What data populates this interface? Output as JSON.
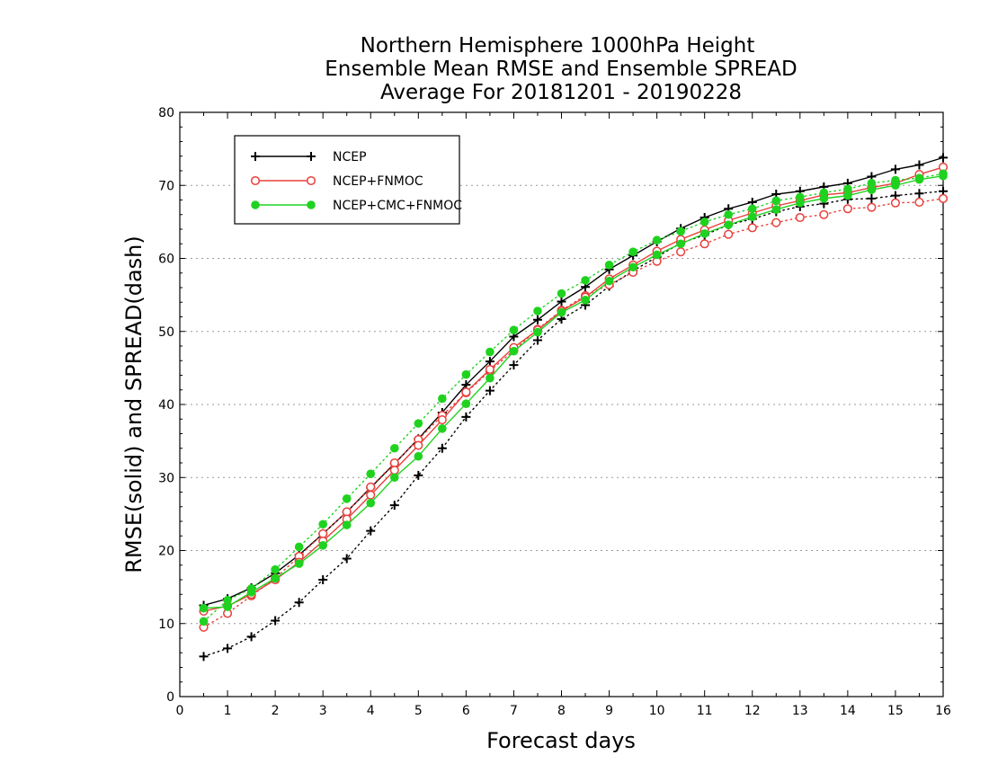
{
  "colors": {
    "ncep": "#000000",
    "ncep_fnmoc": "#e8403c",
    "ncep_cmc_fnmoc": "#1fd21f",
    "grid": "#9a9a9a"
  },
  "chart_data": {
    "type": "line",
    "title": [
      "Northern Hemisphere 1000hPa Height",
      "Ensemble Mean RMSE and Ensemble SPREAD",
      "Average For 20181201 - 20190228"
    ],
    "xlabel": "Forecast days",
    "ylabel": "RMSE(solid) and SPREAD(dash)",
    "xlim": [
      0,
      16
    ],
    "ylim": [
      0,
      80
    ],
    "xticks": [
      0,
      1,
      2,
      3,
      4,
      5,
      6,
      7,
      8,
      9,
      10,
      11,
      12,
      13,
      14,
      15,
      16
    ],
    "yticks": [
      0,
      10,
      20,
      30,
      40,
      50,
      60,
      70,
      80
    ],
    "grid": "horizontal dotted",
    "legend_position": "top-left",
    "x": [
      0.5,
      1,
      1.5,
      2,
      2.5,
      3,
      3.5,
      4,
      4.5,
      5,
      5.5,
      6,
      6.5,
      7,
      7.5,
      8,
      8.5,
      9,
      9.5,
      10,
      10.5,
      11,
      11.5,
      12,
      12.5,
      13,
      13.5,
      14,
      14.5,
      15,
      15.5,
      16
    ],
    "series": [
      {
        "name": "NCEP",
        "color_key": "ncep",
        "marker": "plus",
        "rmse": [
          12.5,
          13.4,
          14.9,
          16.9,
          19.4,
          22.3,
          25.3,
          28.6,
          31.9,
          35.3,
          38.9,
          42.7,
          45.9,
          49.3,
          51.6,
          54.1,
          56.1,
          58.5,
          60.4,
          62.3,
          64.1,
          65.6,
          66.8,
          67.7,
          68.8,
          69.2,
          69.8,
          70.3,
          71.2,
          72.2,
          72.8,
          73.8
        ],
        "spread": [
          5.5,
          6.6,
          8.2,
          10.4,
          12.9,
          16.0,
          18.9,
          22.7,
          26.2,
          30.3,
          34.0,
          38.3,
          41.9,
          45.4,
          48.8,
          51.7,
          53.6,
          56.2,
          58.3,
          60.2,
          62.1,
          63.2,
          64.6,
          65.4,
          66.4,
          67.1,
          67.5,
          68.1,
          68.2,
          68.6,
          68.9,
          69.2
        ]
      },
      {
        "name": "NCEP+FNMOC",
        "color_key": "ncep_fnmoc",
        "marker": "open-circle",
        "rmse": [
          11.7,
          12.4,
          14.0,
          16.0,
          18.4,
          21.3,
          24.3,
          27.6,
          31.0,
          34.4,
          37.9,
          41.7,
          44.8,
          47.8,
          50.2,
          52.8,
          54.7,
          57.2,
          59.1,
          61.0,
          62.6,
          63.9,
          65.2,
          66.2,
          67.2,
          67.9,
          68.7,
          69.0,
          69.7,
          70.3,
          71.5,
          72.5
        ],
        "spread": [
          9.5,
          11.4,
          13.8,
          16.2,
          19.2,
          22.3,
          25.3,
          28.7,
          32.0,
          35.2,
          38.5,
          41.6,
          44.6,
          47.4,
          50.3,
          52.9,
          54.9,
          56.4,
          58.1,
          59.6,
          60.9,
          62.0,
          63.3,
          64.2,
          64.9,
          65.6,
          66.0,
          66.8,
          67.0,
          67.6,
          67.7,
          68.2
        ]
      },
      {
        "name": "NCEP+CMC+FNMOC",
        "color_key": "ncep_cmc_fnmoc",
        "marker": "filled-circle",
        "rmse": [
          12.1,
          12.3,
          14.3,
          16.2,
          18.2,
          20.7,
          23.5,
          26.5,
          30.0,
          32.9,
          36.7,
          40.1,
          43.6,
          47.3,
          49.9,
          52.6,
          54.3,
          56.9,
          58.8,
          60.5,
          62.0,
          63.4,
          64.6,
          65.7,
          66.7,
          67.6,
          68.2,
          68.6,
          69.4,
          70.0,
          70.8,
          71.3
        ],
        "spread": [
          10.3,
          13.2,
          14.8,
          17.4,
          20.5,
          23.6,
          27.1,
          30.5,
          34.0,
          37.4,
          40.8,
          44.1,
          47.2,
          50.2,
          52.8,
          55.2,
          57.0,
          59.1,
          60.9,
          62.5,
          63.7,
          65.0,
          66.0,
          66.8,
          67.9,
          68.4,
          69.0,
          69.5,
          70.3,
          70.7,
          71.0,
          71.6
        ]
      }
    ]
  }
}
